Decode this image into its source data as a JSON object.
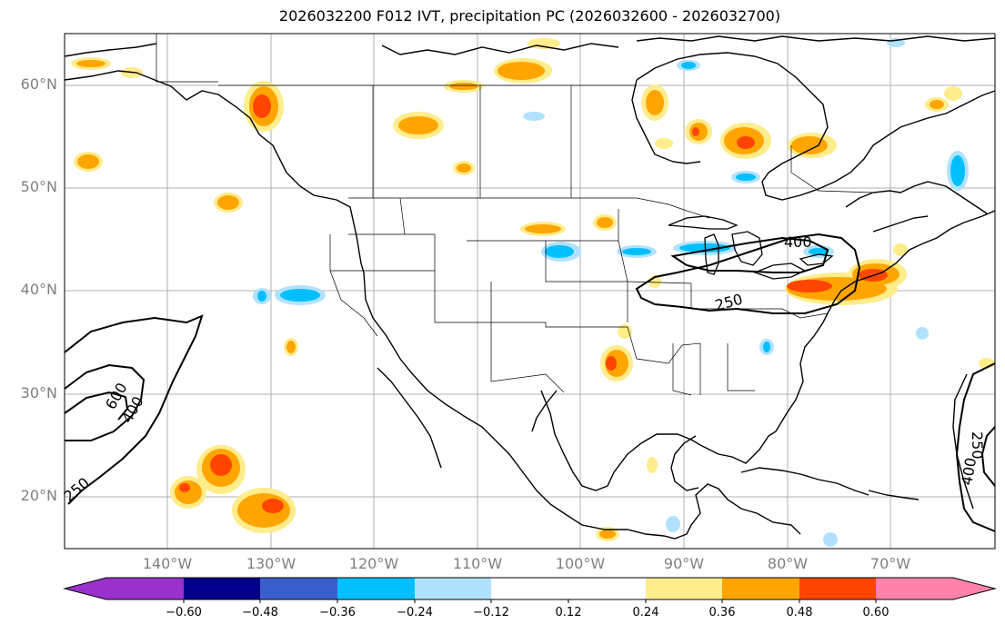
{
  "title": "2026032200 F012 IVT, precipitation PC (2026032600 - 2026032700)",
  "lat_labels": [
    "60°N",
    "50°N",
    "40°N",
    "30°N",
    "20°N"
  ],
  "lon_labels": [
    "140°W",
    "130°W",
    "120°W",
    "110°W",
    "100°W",
    "90°W",
    "80°W",
    "70°W"
  ],
  "colorbar": {
    "ticks": [
      "−0.60",
      "−0.48",
      "−0.36",
      "−0.24",
      "−0.12",
      "0.12",
      "0.24",
      "0.36",
      "0.48",
      "0.60"
    ],
    "colors": [
      "#9932cc",
      "#00008b",
      "#3a5fcd",
      "#00bfff",
      "#b0e2ff",
      "#ffffff",
      "#ffec8b",
      "#ffa500",
      "#ff4500",
      "#b22222",
      "#ff82ab"
    ]
  },
  "contour_labels": [
    "600",
    "400",
    "250",
    "400",
    "250",
    "250",
    "400"
  ],
  "colors": {
    "positive_light": "#ffec8b",
    "positive_mid": "#ffa500",
    "positive_high": "#ff4500",
    "negative_light": "#b0e2ff",
    "negative_mid": "#00bfff",
    "grid": "#b0b0b0",
    "coast": "#000000"
  }
}
